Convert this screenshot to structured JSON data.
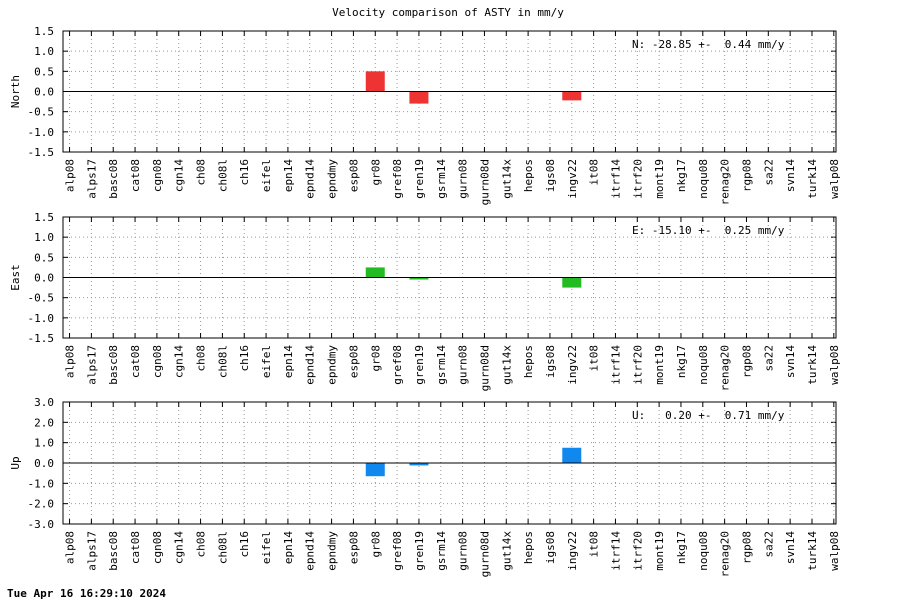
{
  "chart_data": {
    "type": "bar",
    "title": "Velocity comparison of ASTY in mm/y",
    "categories": [
      "alp08",
      "alps17",
      "basc08",
      "cat08",
      "cgn08",
      "cgn14",
      "ch08",
      "ch08l",
      "ch16",
      "eifel",
      "epn14",
      "epnd14",
      "epndmy",
      "esp08",
      "gr08",
      "gref08",
      "gren19",
      "gsrm14",
      "gurn08",
      "gurn08d",
      "gut14x",
      "hepos",
      "igs08",
      "ingv22",
      "it08",
      "itrf14",
      "itrf20",
      "mont19",
      "nkg17",
      "noqu08",
      "renag20",
      "rgp08",
      "sa22",
      "svn14",
      "turk14",
      "walp08"
    ],
    "grid": true,
    "panels": [
      {
        "ylabel": "North",
        "color": "#ee3333",
        "ylim": [
          -1.5,
          1.5
        ],
        "yticks": [
          "1.5",
          "1.0",
          "0.5",
          "0.0",
          "-0.5",
          "-1.0",
          "-1.5"
        ],
        "annotation": "N: -28.85 +-  0.44 mm/y",
        "values": {
          "gr08": 0.5,
          "gren19": -0.3,
          "ingv22": -0.22
        }
      },
      {
        "ylabel": "East",
        "color": "#22bb22",
        "ylim": [
          -1.5,
          1.5
        ],
        "yticks": [
          "1.5",
          "1.0",
          "0.5",
          "0.0",
          "-0.5",
          "-1.0",
          "-1.5"
        ],
        "annotation": "E: -15.10 +-  0.25 mm/y",
        "values": {
          "gr08": 0.25,
          "gren19": -0.05,
          "ingv22": -0.25
        }
      },
      {
        "ylabel": "Up",
        "color": "#1188ee",
        "ylim": [
          -3.0,
          3.0
        ],
        "yticks": [
          "3.0",
          "2.0",
          "1.0",
          "0.0",
          "-1.0",
          "-2.0",
          "-3.0"
        ],
        "annotation": "U:   0.20 +-  0.71 mm/y",
        "values": {
          "gr08": -0.65,
          "gren19": -0.12,
          "ingv22": 0.75
        }
      }
    ]
  },
  "footer": {
    "timestamp": "Tue Apr 16 16:29:10 2024"
  }
}
